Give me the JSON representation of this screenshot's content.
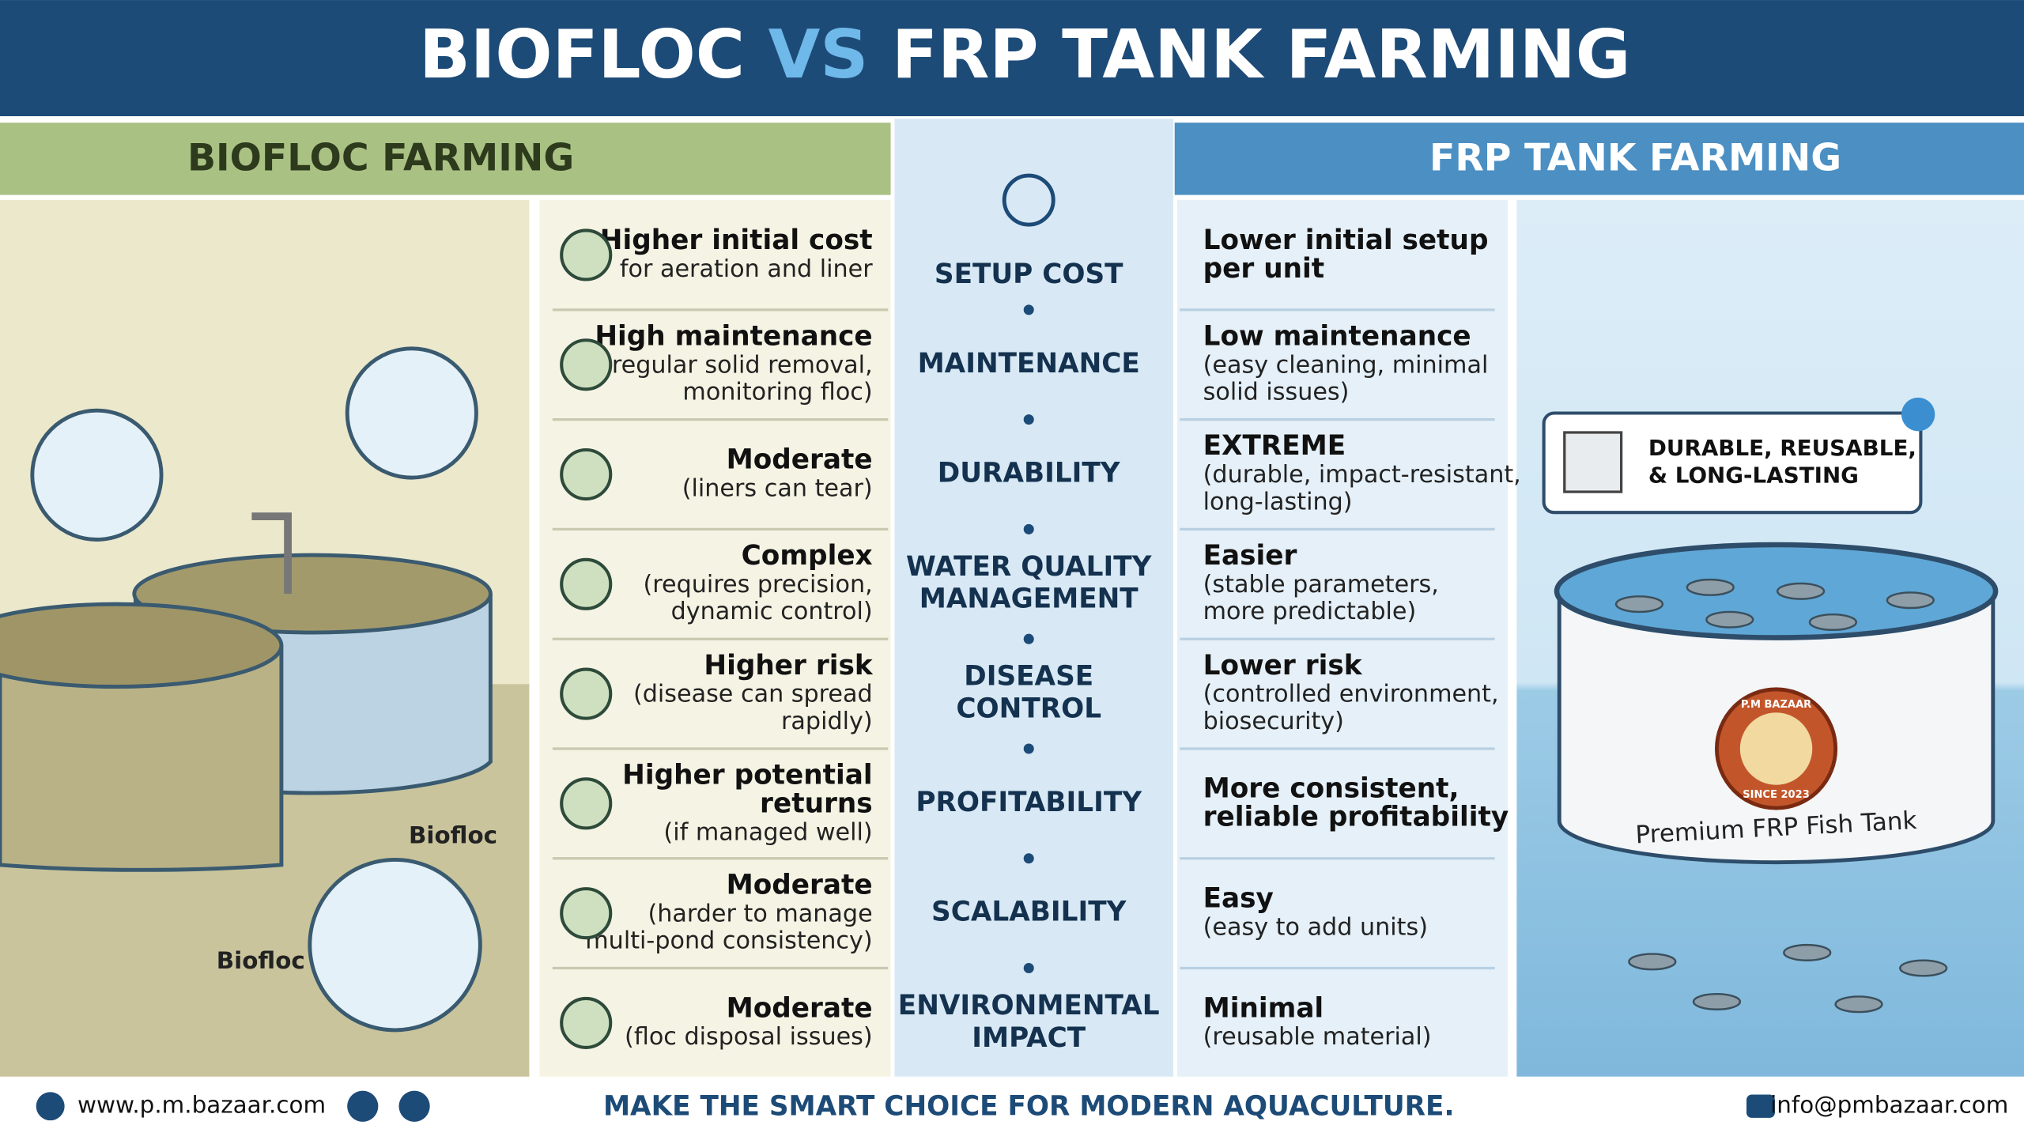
{
  "header": {
    "title_parts": [
      "BIOFLOC",
      "VS",
      "FRP TANK FARMING"
    ]
  },
  "left_heading": "BIOFLOC FARMING",
  "right_heading": "FRP TANK FARMING",
  "rows": [
    {
      "criterion": [
        "SETUP COST"
      ],
      "biofloc": {
        "title": [
          "Higher initial cost"
        ],
        "detail": [
          "for aeration and liner"
        ]
      },
      "frp": {
        "title": [
          "Lower initial setup",
          "per unit"
        ],
        "detail": []
      }
    },
    {
      "criterion": [
        "MAINTENANCE"
      ],
      "biofloc": {
        "title": [
          "High maintenance"
        ],
        "detail": [
          "(regular solid removal,",
          "monitoring floc)"
        ]
      },
      "frp": {
        "title": [
          "Low maintenance"
        ],
        "detail": [
          "(easy cleaning, minimal",
          "solid issues)"
        ]
      }
    },
    {
      "criterion": [
        "DURABILITY"
      ],
      "biofloc": {
        "title": [
          "Moderate"
        ],
        "detail": [
          "(liners can tear)"
        ]
      },
      "frp": {
        "title": [
          "EXTREME"
        ],
        "detail": [
          "(durable, impact-resistant,",
          "long-lasting)"
        ]
      }
    },
    {
      "criterion": [
        "WATER QUALITY",
        "MANAGEMENT"
      ],
      "biofloc": {
        "title": [
          "Complex"
        ],
        "detail": [
          "(requires precision,",
          "dynamic control)"
        ]
      },
      "frp": {
        "title": [
          "Easier"
        ],
        "detail": [
          "(stable parameters,",
          "more predictable)"
        ]
      }
    },
    {
      "criterion": [
        "DISEASE",
        "CONTROL"
      ],
      "biofloc": {
        "title": [
          "Higher risk"
        ],
        "detail": [
          "(disease can spread",
          "rapidly)"
        ]
      },
      "frp": {
        "title": [
          "Lower risk"
        ],
        "detail": [
          "(controlled environment,",
          "biosecurity)"
        ]
      }
    },
    {
      "criterion": [
        "PROFITABILITY"
      ],
      "biofloc": {
        "title": [
          "Higher potential",
          "returns"
        ],
        "detail": [
          "(if managed well)"
        ]
      },
      "frp": {
        "title": [
          "More consistent,",
          "reliable profitability"
        ],
        "detail": []
      }
    },
    {
      "criterion": [
        "SCALABILITY"
      ],
      "biofloc": {
        "title": [
          "Moderate"
        ],
        "detail": [
          "(harder to manage",
          "multi-pond consistency)"
        ]
      },
      "frp": {
        "title": [
          "Easy"
        ],
        "detail": [
          "(easy to add units)"
        ]
      }
    },
    {
      "criterion": [
        "ENVIRONMENTAL",
        "IMPACT"
      ],
      "biofloc": {
        "title": [
          "Moderate"
        ],
        "detail": [
          "(floc disposal issues)"
        ]
      },
      "frp": {
        "title": [
          "Minimal"
        ],
        "detail": [
          "(reusable material)"
        ]
      }
    }
  ],
  "illustration": {
    "biofloc_labels": [
      "Biofloc",
      "Biofloc"
    ],
    "callout": [
      "DURABLE, REUSABLE,",
      "& LONG-LASTING"
    ],
    "tank_label": "Premium FRP Fish Tank",
    "logo": [
      "P.M BAZAAR",
      "SINCE 2023"
    ]
  },
  "footer": {
    "website": "www.p.m.bazaar.com",
    "tagline": "MAKE THE SMART CHOICE FOR MODERN AQUACULTURE.",
    "email": "info@pmbazaar.com"
  }
}
